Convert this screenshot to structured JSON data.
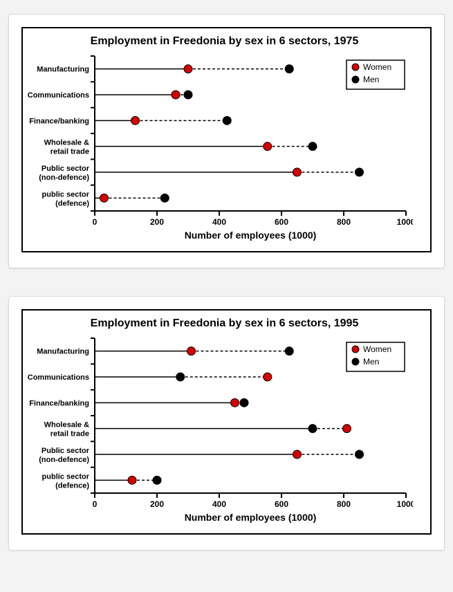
{
  "charts": [
    {
      "title": "Employment in Freedonia by sex in 6 sectors, 1975",
      "title_fontsize": 14,
      "xlabel": "Number of employees (1000)",
      "xlim": [
        0,
        1000
      ],
      "xtick_step": 200,
      "xticks": [
        0,
        200,
        400,
        600,
        800,
        1000
      ],
      "categories": [
        "Manufacturing",
        "Communications",
        "Finance/banking",
        "Wholesale &\nretail trade",
        "Public sector\n(non-defence)",
        "public sector\n(defence)"
      ],
      "data": [
        {
          "low": 300,
          "high": 625,
          "low_series": "Women",
          "high_series": "Men"
        },
        {
          "low": 260,
          "high": 300,
          "low_series": "Women",
          "high_series": "Men"
        },
        {
          "low": 130,
          "high": 425,
          "low_series": "Women",
          "high_series": "Men"
        },
        {
          "low": 555,
          "high": 700,
          "low_series": "Women",
          "high_series": "Men"
        },
        {
          "low": 650,
          "high": 850,
          "low_series": "Women",
          "high_series": "Men"
        },
        {
          "low": 30,
          "high": 225,
          "low_series": "Women",
          "high_series": "Men"
        }
      ],
      "series_colors": {
        "Women": "#d60000",
        "Men": "#000000"
      },
      "marker_radius": 6,
      "marker_stroke": "#000000",
      "background_color": "#ffffff",
      "axis_color": "#000000",
      "legend": [
        "Women",
        "Men"
      ]
    },
    {
      "title": "Employment in Freedonia by sex in 6 sectors, 1995",
      "title_fontsize": 14,
      "xlabel": "Number of employees (1000)",
      "xlim": [
        0,
        1000
      ],
      "xtick_step": 200,
      "xticks": [
        0,
        200,
        400,
        600,
        800,
        1000
      ],
      "categories": [
        "Manufacturing",
        "Communications",
        "Finance/banking",
        "Wholesale &\nretail trade",
        "Public sector\n(non-defence)",
        "public sector\n(defence)"
      ],
      "data": [
        {
          "low": 310,
          "high": 625,
          "low_series": "Women",
          "high_series": "Men"
        },
        {
          "low": 275,
          "high": 555,
          "low_series": "Men",
          "high_series": "Women"
        },
        {
          "low": 450,
          "high": 480,
          "low_series": "Women",
          "high_series": "Men"
        },
        {
          "low": 700,
          "high": 810,
          "low_series": "Men",
          "high_series": "Women"
        },
        {
          "low": 650,
          "high": 850,
          "low_series": "Women",
          "high_series": "Men"
        },
        {
          "low": 120,
          "high": 200,
          "low_series": "Women",
          "high_series": "Men"
        }
      ],
      "series_colors": {
        "Women": "#d60000",
        "Men": "#000000"
      },
      "marker_radius": 6,
      "marker_stroke": "#000000",
      "background_color": "#ffffff",
      "axis_color": "#000000",
      "legend": [
        "Women",
        "Men"
      ]
    }
  ]
}
